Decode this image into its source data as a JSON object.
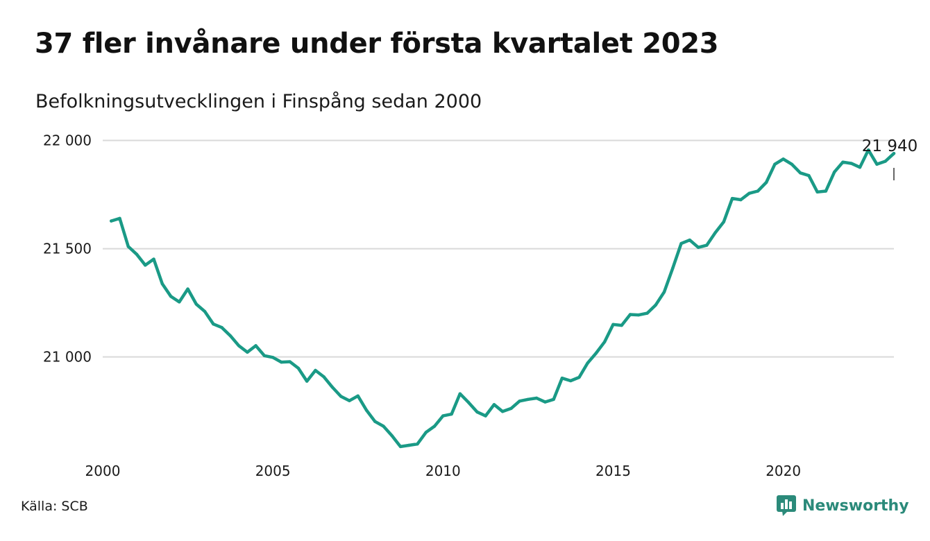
{
  "header": {
    "title": "37 fler invånare under första kvartalet 2023",
    "subtitle": "Befolkningsutvecklingen i Finspång sedan 2000"
  },
  "footer": {
    "source": "Källa: SCB",
    "brand": "Newsworthy",
    "brand_icon": "newsworthy-logo-icon"
  },
  "colors": {
    "line": "#1a9a86",
    "grid": "#d9d9d9",
    "text": "#1a1a1a",
    "brand": "#2b8a7a"
  },
  "chart_data": {
    "type": "line",
    "title": "37 fler invånare under första kvartalet 2023",
    "subtitle": "Befolkningsutvecklingen i Finspång sedan 2000",
    "xlabel": "",
    "ylabel": "",
    "xlim": [
      2000.0,
      2023.25
    ],
    "ylim": [
      20560,
      22040
    ],
    "grid": "horizontal",
    "x_ticks": [
      2000,
      2005,
      2010,
      2015,
      2020
    ],
    "x_tick_labels": [
      "2000",
      "2005",
      "2010",
      "2015",
      "2020"
    ],
    "y_ticks": [
      21000,
      21500,
      22000
    ],
    "y_tick_labels": [
      "21 000",
      "21 500",
      "22 000"
    ],
    "end_label": "21 940",
    "series": [
      {
        "x": [
          2000.25,
          2000.5,
          2000.75,
          2001.0,
          2001.25,
          2001.5,
          2001.75,
          2002.0,
          2002.25,
          2002.5,
          2002.75,
          2003.0,
          2003.25,
          2003.5,
          2003.75,
          2004.0,
          2004.25,
          2004.5,
          2004.75,
          2005.0,
          2005.25,
          2005.5,
          2005.75,
          2006.0,
          2006.25,
          2006.5,
          2006.75,
          2007.0,
          2007.25,
          2007.5,
          2007.75,
          2008.0,
          2008.25,
          2008.5,
          2008.75,
          2009.0,
          2009.25,
          2009.5,
          2009.75,
          2010.0,
          2010.25,
          2010.5,
          2010.75,
          2011.0,
          2011.25,
          2011.5,
          2011.75,
          2012.0,
          2012.25,
          2012.5,
          2012.75,
          2013.0,
          2013.25,
          2013.5,
          2013.75,
          2014.0,
          2014.25,
          2014.5,
          2014.75,
          2015.0,
          2015.25,
          2015.5,
          2015.75,
          2016.0,
          2016.25,
          2016.5,
          2016.75,
          2017.0,
          2017.25,
          2017.5,
          2017.75,
          2018.0,
          2018.25,
          2018.5,
          2018.75,
          2019.0,
          2019.25,
          2019.5,
          2019.75,
          2020.0,
          2020.25,
          2020.5,
          2020.75,
          2021.0,
          2021.25,
          2021.5,
          2021.75,
          2022.0,
          2022.25,
          2022.5,
          2022.75,
          2023.0,
          2023.25
        ],
        "values": [
          21628,
          21640,
          21510,
          21474,
          21424,
          21452,
          21338,
          21280,
          21254,
          21314,
          21244,
          21210,
          21152,
          21136,
          21098,
          21052,
          21022,
          21052,
          21006,
          20998,
          20976,
          20978,
          20948,
          20888,
          20938,
          20908,
          20860,
          20818,
          20798,
          20820,
          20754,
          20702,
          20680,
          20636,
          20586,
          20592,
          20598,
          20652,
          20680,
          20728,
          20736,
          20830,
          20790,
          20746,
          20728,
          20780,
          20748,
          20762,
          20796,
          20804,
          20810,
          20792,
          20804,
          20902,
          20890,
          20906,
          20972,
          21018,
          21070,
          21150,
          21146,
          21196,
          21194,
          21202,
          21240,
          21300,
          21410,
          21524,
          21540,
          21506,
          21516,
          21574,
          21624,
          21732,
          21726,
          21756,
          21766,
          21806,
          21890,
          21914,
          21890,
          21850,
          21838,
          21762,
          21766,
          21854,
          21900,
          21894,
          21876,
          21956,
          21890,
          21904,
          21940
        ]
      }
    ]
  }
}
